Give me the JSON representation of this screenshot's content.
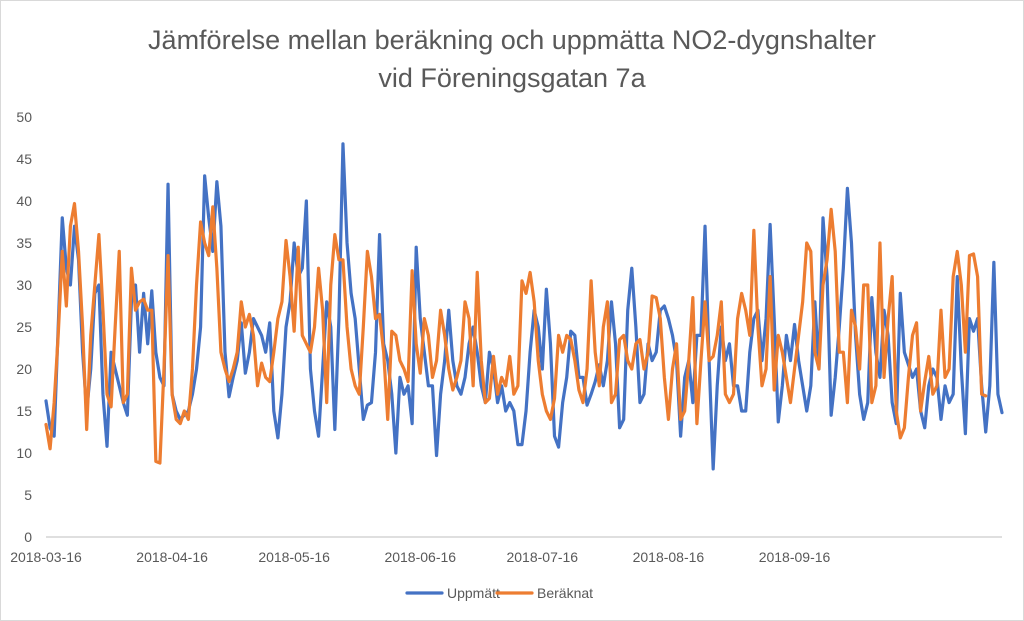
{
  "chart_data": {
    "type": "line",
    "title": "Jämförelse mellan beräkning och uppmätta NO2-dygnshalter",
    "subtitle": "vid Föreningsgatan 7a",
    "xlabel": "",
    "ylabel": "",
    "ylim": [
      0,
      50
    ],
    "yticks": [
      0,
      5,
      10,
      15,
      20,
      25,
      30,
      35,
      40,
      45,
      50
    ],
    "grid": false,
    "legend_position": "bottom",
    "x_start": "2018-03-16",
    "x_end": "2018-10-06",
    "xtick_labels": [
      "2018-03-16",
      "2018-04-16",
      "2018-05-16",
      "2018-06-16",
      "2018-07-16",
      "2018-08-16",
      "2018-09-16"
    ],
    "xtick_days": [
      0,
      31,
      61,
      92,
      122,
      153,
      184
    ],
    "series": [
      {
        "name": "Uppmätt",
        "color": "#4472c4",
        "values": [
          16.2,
          13.0,
          12.0,
          25.0,
          38.0,
          32.0,
          30.0,
          37.0,
          33.0,
          22.0,
          15.0,
          20.0,
          29.0,
          30.0,
          17.0,
          10.8,
          22.0,
          20.0,
          18.0,
          16.0,
          14.5,
          28.0,
          30.0,
          22.0,
          29.0,
          23.0,
          29.3,
          22.0,
          19.0,
          18.0,
          42.0,
          17.0,
          15.0,
          14.0,
          14.5,
          15.0,
          17.0,
          20.0,
          25.0,
          43.0,
          38.0,
          34.0,
          42.3,
          37.0,
          22.0,
          16.7,
          19.0,
          21.0,
          25.5,
          19.5,
          22.0,
          26.0,
          25.0,
          24.0,
          22.0,
          25.5,
          15.0,
          11.8,
          17.0,
          25.0,
          28.0,
          35.0,
          31.0,
          32.0,
          40.0,
          20.0,
          15.0,
          12.0,
          20.0,
          28.0,
          25.0,
          12.8,
          26.0,
          46.8,
          35.0,
          29.0,
          26.0,
          20.0,
          14.0,
          15.7,
          16.0,
          22.0,
          36.0,
          23.0,
          21.0,
          17.0,
          10.0,
          19.0,
          17.0,
          18.0,
          13.5,
          34.5,
          26.0,
          22.0,
          18.0,
          18.0,
          9.7,
          17.0,
          21.0,
          27.0,
          21.0,
          18.0,
          17.0,
          19.0,
          23.0,
          25.0,
          22.0,
          18.0,
          16.0,
          22.0,
          20.0,
          16.0,
          18.0,
          15.0,
          16.0,
          15.0,
          11.0,
          11.0,
          15.0,
          22.0,
          27.0,
          25.0,
          20.0,
          29.5,
          23.0,
          12.0,
          10.7,
          16.0,
          19.0,
          24.5,
          24.0,
          19.0,
          19.0,
          15.7,
          17.0,
          18.5,
          20.5,
          18.0,
          21.0,
          28.0,
          23.0,
          13.0,
          14.0,
          27.0,
          32.0,
          25.0,
          16.0,
          17.0,
          23.0,
          21.0,
          22.0,
          27.0,
          27.5,
          26.0,
          24.0,
          21.0,
          12.0,
          19.0,
          21.0,
          16.0,
          24.0,
          24.0,
          37.0,
          21.0,
          8.1,
          18.0,
          25.0,
          21.0,
          23.0,
          18.0,
          18.0,
          15.0,
          15.0,
          22.0,
          26.0,
          27.0,
          21.0,
          26.0,
          37.2,
          26.0,
          13.7,
          18.0,
          24.0,
          21.0,
          25.3,
          21.0,
          18.0,
          15.0,
          18.0,
          28.0,
          20.0,
          38.0,
          31.0,
          14.5,
          19.0,
          25.0,
          32.0,
          41.5,
          35.0,
          24.0,
          17.0,
          14.0,
          16.0,
          28.5,
          22.0,
          19.0,
          27.0,
          24.0,
          16.0,
          13.5,
          29.0,
          22.0,
          20.5,
          19.0,
          20.0,
          15.0,
          13.0,
          18.0,
          20.0,
          19.0,
          14.0,
          18.0,
          16.0,
          17.0,
          31.0,
          20.0,
          12.3,
          26.0,
          24.5,
          26.0,
          18.0,
          12.5,
          18.0,
          32.7,
          17.0,
          14.8
        ]
      },
      {
        "name": "Beräknat",
        "color": "#ed7d31",
        "values": [
          13.4,
          10.5,
          16.0,
          24.0,
          34.0,
          27.5,
          37.0,
          39.7,
          34.0,
          25.0,
          12.8,
          24.0,
          30.0,
          36.0,
          27.0,
          17.0,
          15.5,
          25.0,
          34.0,
          16.0,
          17.0,
          32.0,
          27.0,
          28.0,
          28.3,
          27.0,
          27.0,
          9.0,
          8.8,
          20.0,
          33.5,
          17.0,
          14.0,
          13.5,
          15.0,
          14.0,
          20.0,
          30.0,
          37.5,
          35.0,
          33.5,
          39.3,
          32.0,
          22.0,
          20.0,
          18.5,
          20.0,
          22.0,
          28.0,
          25.0,
          26.5,
          24.0,
          18.0,
          20.7,
          19.0,
          18.5,
          22.0,
          26.0,
          28.0,
          35.3,
          31.0,
          24.5,
          34.5,
          24.0,
          23.0,
          22.0,
          25.0,
          32.0,
          27.0,
          16.0,
          30.0,
          36.0,
          33.0,
          33.0,
          25.0,
          20.0,
          18.0,
          17.0,
          25.0,
          34.0,
          31.0,
          26.0,
          26.5,
          22.0,
          14.0,
          24.5,
          24.0,
          21.0,
          20.0,
          18.5,
          31.7,
          23.0,
          19.5,
          26.0,
          24.0,
          19.0,
          21.0,
          27.0,
          24.0,
          20.0,
          17.5,
          19.0,
          21.0,
          28.0,
          26.0,
          18.0,
          31.5,
          21.0,
          16.0,
          16.5,
          21.5,
          17.0,
          19.0,
          18.0,
          21.5,
          17.0,
          18.0,
          30.5,
          29.0,
          31.5,
          28.0,
          21.0,
          17.0,
          15.0,
          14.0,
          16.5,
          24.0,
          22.0,
          24.0,
          23.5,
          21.0,
          17.5,
          16.0,
          20.0,
          30.5,
          22.0,
          18.0,
          25.0,
          28.0,
          16.0,
          17.0,
          23.5,
          24.0,
          21.0,
          20.0,
          23.0,
          23.5,
          20.0,
          22.0,
          28.7,
          28.5,
          26.0,
          19.0,
          14.0,
          20.0,
          23.0,
          14.0,
          15.0,
          21.0,
          28.5,
          13.5,
          21.0,
          28.0,
          21.0,
          21.5,
          24.0,
          28.0,
          17.0,
          16.0,
          17.0,
          26.0,
          29.0,
          27.0,
          24.0,
          36.5,
          25.0,
          18.0,
          20.0,
          31.0,
          17.5,
          24.0,
          22.0,
          19.0,
          16.0,
          20.0,
          24.0,
          28.0,
          35.0,
          34.0,
          22.0,
          20.0,
          30.0,
          33.0,
          39.0,
          34.0,
          22.0,
          22.0,
          16.0,
          27.0,
          25.0,
          20.0,
          30.0,
          30.0,
          16.0,
          18.0,
          35.0,
          19.0,
          26.0,
          31.0,
          15.0,
          11.8,
          13.0,
          19.0,
          24.0,
          25.5,
          15.0,
          18.5,
          21.5,
          17.0,
          18.0,
          27.0,
          19.0,
          20.0,
          31.0,
          34.0,
          30.0,
          22.0,
          33.5,
          33.7,
          31.0,
          17.0,
          16.8
        ]
      }
    ]
  }
}
